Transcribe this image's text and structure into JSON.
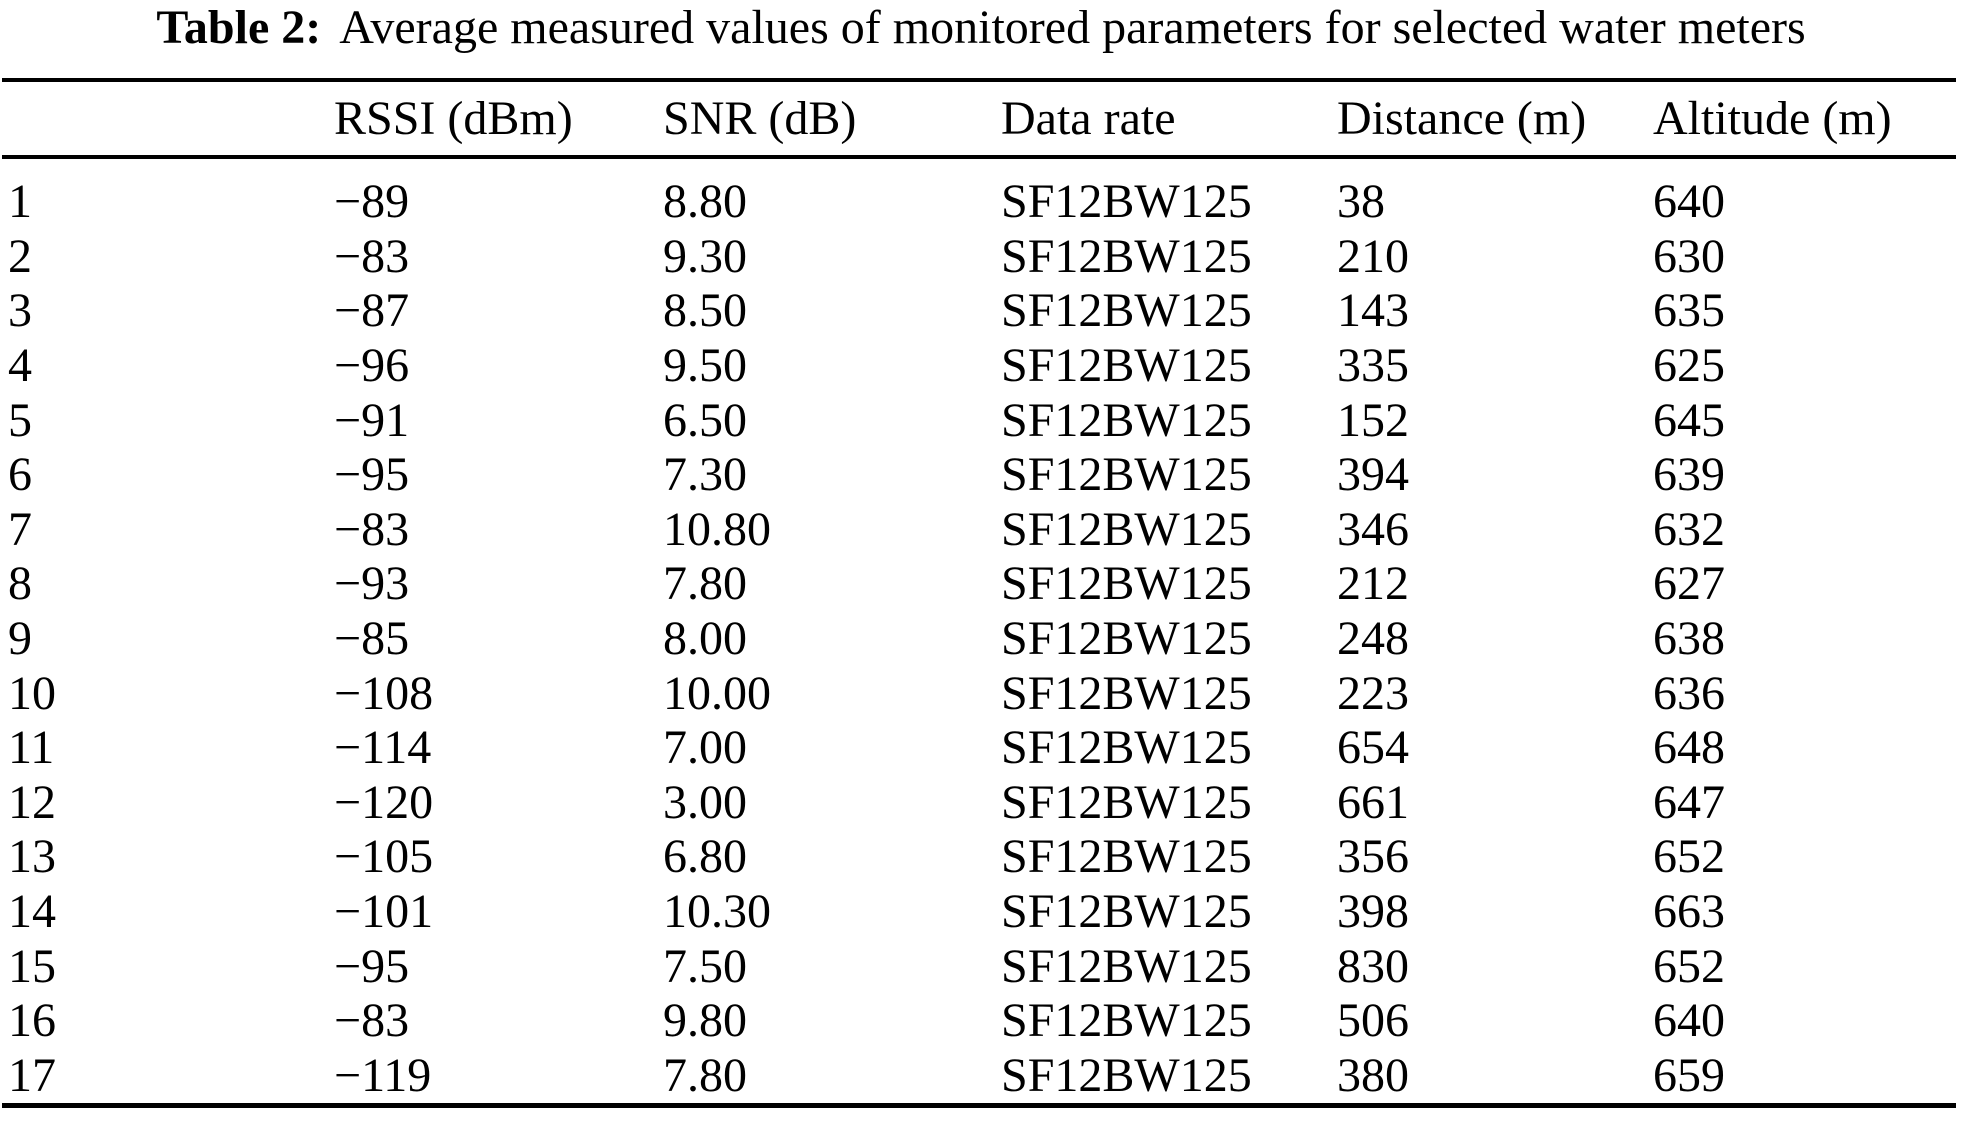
{
  "caption": {
    "label": "Table 2:",
    "text": "Average measured values of monitored parameters for selected water meters"
  },
  "table": {
    "column_headers": [
      "",
      "RSSI (dBm)",
      "SNR (dB)",
      "Data rate",
      "Distance (m)",
      "Altitude (m)"
    ],
    "rows": [
      {
        "id": "1",
        "rssi": "−89",
        "snr": "8.80",
        "data_rate": "SF12BW125",
        "distance": "38",
        "altitude": "640"
      },
      {
        "id": "2",
        "rssi": "−83",
        "snr": "9.30",
        "data_rate": "SF12BW125",
        "distance": "210",
        "altitude": "630"
      },
      {
        "id": "3",
        "rssi": "−87",
        "snr": "8.50",
        "data_rate": "SF12BW125",
        "distance": "143",
        "altitude": "635"
      },
      {
        "id": "4",
        "rssi": "−96",
        "snr": "9.50",
        "data_rate": "SF12BW125",
        "distance": "335",
        "altitude": "625"
      },
      {
        "id": "5",
        "rssi": "−91",
        "snr": "6.50",
        "data_rate": "SF12BW125",
        "distance": "152",
        "altitude": "645"
      },
      {
        "id": "6",
        "rssi": "−95",
        "snr": "7.30",
        "data_rate": "SF12BW125",
        "distance": "394",
        "altitude": "639"
      },
      {
        "id": "7",
        "rssi": "−83",
        "snr": "10.80",
        "data_rate": "SF12BW125",
        "distance": "346",
        "altitude": "632"
      },
      {
        "id": "8",
        "rssi": "−93",
        "snr": "7.80",
        "data_rate": "SF12BW125",
        "distance": "212",
        "altitude": "627"
      },
      {
        "id": "9",
        "rssi": "−85",
        "snr": "8.00",
        "data_rate": "SF12BW125",
        "distance": "248",
        "altitude": "638"
      },
      {
        "id": "10",
        "rssi": "−108",
        "snr": "10.00",
        "data_rate": "SF12BW125",
        "distance": "223",
        "altitude": "636"
      },
      {
        "id": "11",
        "rssi": "−114",
        "snr": "7.00",
        "data_rate": "SF12BW125",
        "distance": "654",
        "altitude": "648"
      },
      {
        "id": "12",
        "rssi": "−120",
        "snr": "3.00",
        "data_rate": "SF12BW125",
        "distance": "661",
        "altitude": "647"
      },
      {
        "id": "13",
        "rssi": "−105",
        "snr": "6.80",
        "data_rate": "SF12BW125",
        "distance": "356",
        "altitude": "652"
      },
      {
        "id": "14",
        "rssi": "−101",
        "snr": "10.30",
        "data_rate": "SF12BW125",
        "distance": "398",
        "altitude": "663"
      },
      {
        "id": "15",
        "rssi": "−95",
        "snr": "7.50",
        "data_rate": "SF12BW125",
        "distance": "830",
        "altitude": "652"
      },
      {
        "id": "16",
        "rssi": "−83",
        "snr": "9.80",
        "data_rate": "SF12BW125",
        "distance": "506",
        "altitude": "640"
      },
      {
        "id": "17",
        "rssi": "−119",
        "snr": "7.80",
        "data_rate": "SF12BW125",
        "distance": "380",
        "altitude": "659"
      }
    ]
  },
  "colors": {
    "text": "#000000",
    "background": "#ffffff",
    "rule": "#000000"
  }
}
